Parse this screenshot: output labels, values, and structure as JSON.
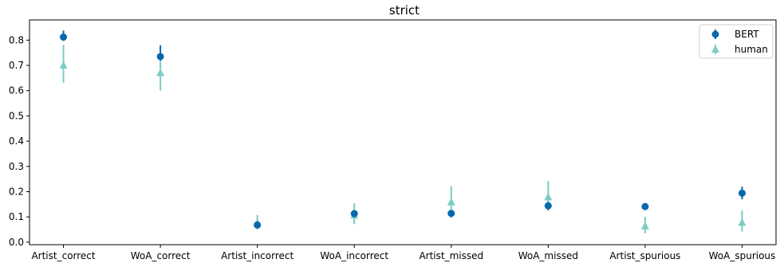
{
  "chart_data": {
    "type": "scatter",
    "title": "strict",
    "xlabel": "",
    "ylabel": "",
    "categories": [
      "Artist_correct",
      "WoA_correct",
      "Artist_incorrect",
      "WoA_incorrect",
      "Artist_missed",
      "WoA_missed",
      "Artist_spurious",
      "WoA_spurious"
    ],
    "ylim": [
      -0.01,
      0.88
    ],
    "yticks": [
      0.0,
      0.1,
      0.2,
      0.3,
      0.4,
      0.5,
      0.6,
      0.7,
      0.8
    ],
    "ytick_labels": [
      "0.0",
      "0.1",
      "0.2",
      "0.3",
      "0.4",
      "0.5",
      "0.6",
      "0.7",
      "0.8"
    ],
    "grid": false,
    "legend_position": "top-right",
    "series": [
      {
        "name": "BERT",
        "marker": "circle",
        "color": "#0868ac",
        "values": [
          0.812,
          0.735,
          0.068,
          0.113,
          0.114,
          0.144,
          0.141,
          0.194
        ],
        "err_low": [
          0.797,
          0.719,
          0.062,
          0.105,
          0.107,
          0.126,
          0.13,
          0.17
        ],
        "err_high": [
          0.838,
          0.78,
          0.075,
          0.122,
          0.121,
          0.16,
          0.152,
          0.22
        ]
      },
      {
        "name": "human",
        "marker": "triangle",
        "color": "#7bccc4",
        "values": [
          0.7,
          0.67,
          0.076,
          0.106,
          0.158,
          0.178,
          0.063,
          0.077
        ],
        "err_low": [
          0.632,
          0.6,
          0.05,
          0.072,
          0.095,
          0.13,
          0.035,
          0.042
        ],
        "err_high": [
          0.781,
          0.743,
          0.108,
          0.154,
          0.222,
          0.242,
          0.1,
          0.125
        ]
      }
    ]
  }
}
